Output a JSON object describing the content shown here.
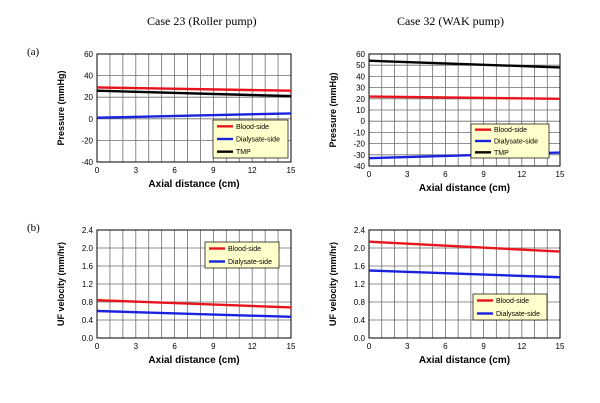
{
  "headers": {
    "left": "Case 23 (Roller pump)",
    "right": "Case 32 (WAK pump)",
    "row_a": "(a)",
    "row_b": "(b)"
  },
  "colors": {
    "blood": "#e8141c",
    "dialysate": "#1a22e0",
    "tmp": "#000000",
    "legend_bg": "#ffffcc",
    "grid": "#6e6e6e"
  },
  "chart_data": [
    {
      "id": "a-left",
      "type": "line",
      "xlabel": "Axial distance (cm)",
      "ylabel": "Pressure (mmHg)",
      "xlim": [
        0,
        15
      ],
      "ylim": [
        -40,
        60
      ],
      "xticks": [
        0,
        3,
        6,
        9,
        12,
        15
      ],
      "yticks": [
        -40,
        -20,
        0,
        20,
        40,
        60
      ],
      "legend": "bottom-right",
      "series": [
        {
          "name": "Blood-side",
          "color": "blood",
          "x": [
            0,
            15
          ],
          "y": [
            29,
            26
          ]
        },
        {
          "name": "Dialysate-side",
          "color": "dialysate",
          "x": [
            0,
            15
          ],
          "y": [
            1,
            5
          ]
        },
        {
          "name": "TMP",
          "color": "tmp",
          "x": [
            0,
            15
          ],
          "y": [
            26,
            21
          ]
        }
      ]
    },
    {
      "id": "a-right",
      "type": "line",
      "xlabel": "Axial distance (cm)",
      "ylabel": "Pressure (mmHg)",
      "xlim": [
        0,
        15
      ],
      "ylim": [
        -40,
        60
      ],
      "xticks": [
        0,
        3,
        6,
        9,
        12,
        15
      ],
      "yticks": [
        -40,
        -30,
        -20,
        -10,
        0,
        10,
        20,
        30,
        40,
        50,
        60
      ],
      "legend": "bottom-right",
      "series": [
        {
          "name": "Blood-side",
          "color": "blood",
          "x": [
            0,
            15
          ],
          "y": [
            22,
            20
          ]
        },
        {
          "name": "Dialysate-side",
          "color": "dialysate",
          "x": [
            0,
            15
          ],
          "y": [
            -33,
            -28
          ]
        },
        {
          "name": "TMP",
          "color": "tmp",
          "x": [
            0,
            15
          ],
          "y": [
            54,
            48
          ]
        }
      ]
    },
    {
      "id": "b-left",
      "type": "line",
      "xlabel": "Axial distance (cm)",
      "ylabel": "UF velocity (mm/hr)",
      "xlim": [
        0,
        15
      ],
      "ylim": [
        0,
        2.4
      ],
      "xticks": [
        0,
        3,
        6,
        9,
        12,
        15
      ],
      "yticks": [
        0.0,
        0.4,
        0.8,
        1.2,
        1.6,
        2.0,
        2.4
      ],
      "legend": "top-right",
      "series": [
        {
          "name": "Blood-side",
          "color": "blood",
          "x": [
            0,
            15
          ],
          "y": [
            0.84,
            0.68
          ]
        },
        {
          "name": "Dialysate-side",
          "color": "dialysate",
          "x": [
            0,
            15
          ],
          "y": [
            0.6,
            0.47
          ]
        }
      ]
    },
    {
      "id": "b-right",
      "type": "line",
      "xlabel": "Axial distance (cm)",
      "ylabel": "UF velocity (mm/hr)",
      "xlim": [
        0,
        15
      ],
      "ylim": [
        0,
        2.4
      ],
      "xticks": [
        0,
        3,
        6,
        9,
        12,
        15
      ],
      "yticks": [
        0.0,
        0.4,
        0.8,
        1.2,
        1.6,
        2.0,
        2.4
      ],
      "legend": "bottom-right",
      "series": [
        {
          "name": "Blood-side",
          "color": "blood",
          "x": [
            0,
            15
          ],
          "y": [
            2.14,
            1.92
          ]
        },
        {
          "name": "Dialysate-side",
          "color": "dialysate",
          "x": [
            0,
            15
          ],
          "y": [
            1.5,
            1.35
          ]
        }
      ]
    }
  ]
}
